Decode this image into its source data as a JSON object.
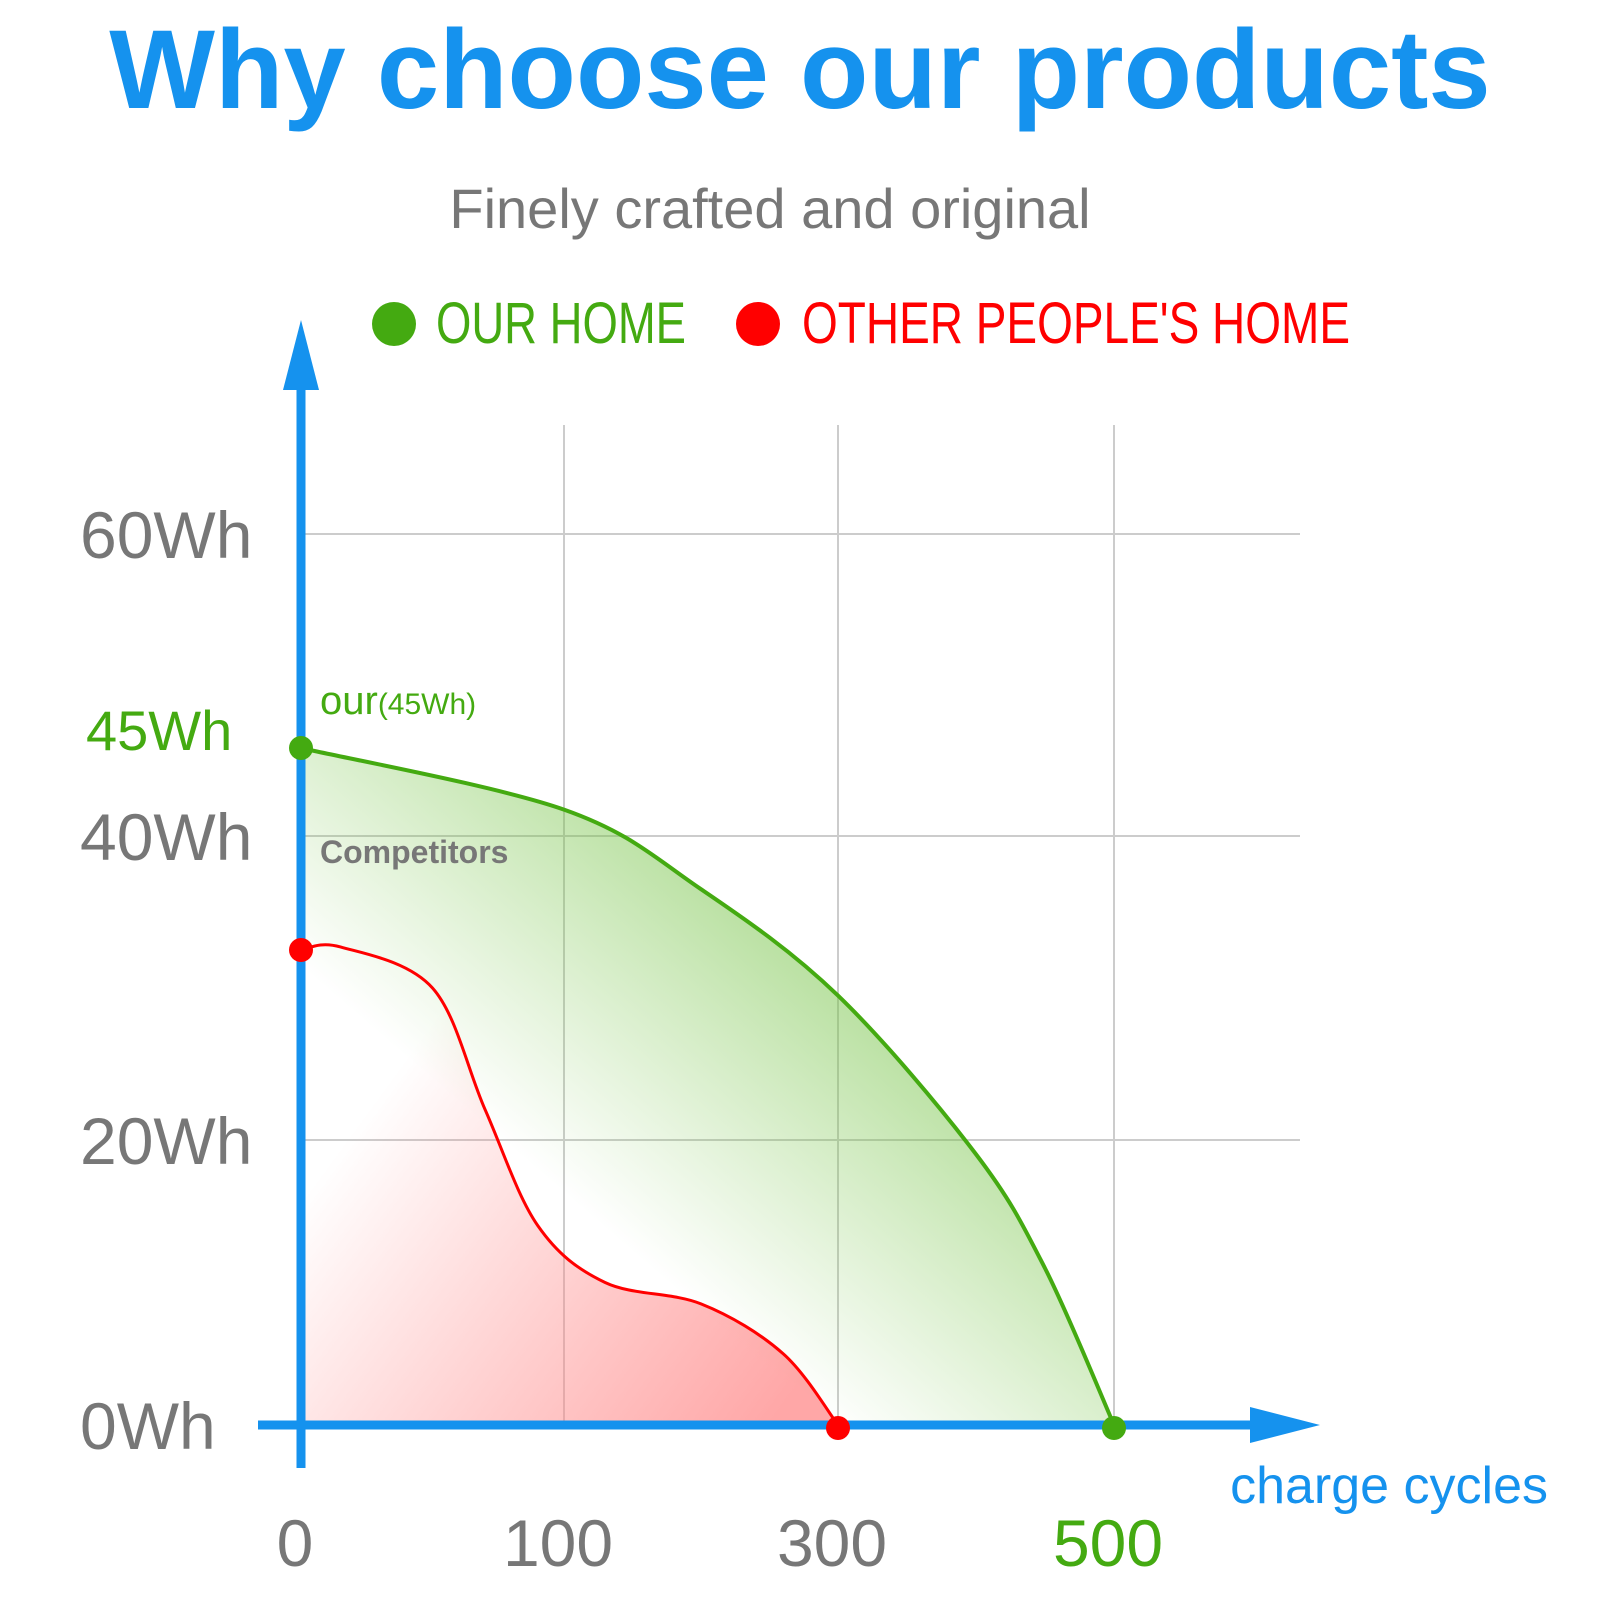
{
  "title": "Why choose our products",
  "subtitle": "Finely crafted and original",
  "colors": {
    "title": "#1592EE",
    "axis": "#1592EE",
    "grid": "#CCCCCC",
    "tick": "#777777",
    "ours": "#44AA11",
    "others": "#FF0000"
  },
  "chart_data": {
    "type": "area",
    "xlabel": "charge cycles",
    "ylabel": "",
    "x_ticks": [
      0,
      100,
      300,
      500
    ],
    "y_ticks": [
      "0Wh",
      "20Wh",
      "40Wh",
      "60Wh"
    ],
    "highlight_y_tick": "45Wh",
    "highlight_x_tick": "500",
    "grid": true,
    "legend": {
      "placement": "top",
      "entries": [
        "OUR HOME",
        "OTHER PEOPLE'S HOME"
      ]
    },
    "series": [
      {
        "name": "OUR HOME",
        "points": [
          [
            0,
            45
          ],
          [
            100,
            41.5
          ],
          [
            200,
            36.5
          ],
          [
            300,
            29.5
          ],
          [
            400,
            19
          ],
          [
            450,
            11
          ],
          [
            500,
            0
          ]
        ]
      },
      {
        "name": "OTHER PEOPLE'S HOME",
        "points": [
          [
            0,
            32.5
          ],
          [
            15,
            32.7
          ],
          [
            50,
            30
          ],
          [
            70,
            22
          ],
          [
            90,
            14
          ],
          [
            130,
            10
          ],
          [
            200,
            8.5
          ],
          [
            260,
            5
          ],
          [
            300,
            0
          ]
        ]
      }
    ],
    "annotations": {
      "ours_main": "our",
      "ours_sub": "(45Wh)",
      "competitors": "Competitors"
    }
  }
}
